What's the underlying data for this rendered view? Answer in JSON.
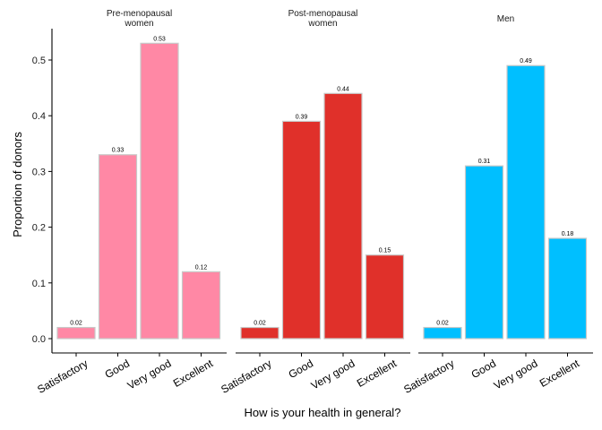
{
  "chart_data": {
    "type": "bar",
    "xlabel": "How is your health in general?",
    "ylabel": "Proportion of donors",
    "ylim": [
      0,
      0.55
    ],
    "yticks": [
      "0.0",
      "0.1",
      "0.2",
      "0.3",
      "0.4",
      "0.5"
    ],
    "categories": [
      "Satisfactory",
      "Good",
      "Very good",
      "Excellent"
    ],
    "grid": false,
    "facets": [
      {
        "title_lines": [
          "Pre-menopausal",
          "women"
        ],
        "color": "#ff88a5",
        "values": [
          0.02,
          0.33,
          0.53,
          0.12
        ],
        "labels": [
          "0.02",
          "0.33",
          "0.53",
          "0.12"
        ]
      },
      {
        "title_lines": [
          "Post-menopausal",
          "women"
        ],
        "color": "#e0302a",
        "values": [
          0.02,
          0.39,
          0.44,
          0.15
        ],
        "labels": [
          "0.02",
          "0.39",
          "0.44",
          "0.15"
        ]
      },
      {
        "title_lines": [
          "Men"
        ],
        "color": "#00bfff",
        "values": [
          0.02,
          0.31,
          0.49,
          0.18
        ],
        "labels": [
          "0.02",
          "0.31",
          "0.49",
          "0.18"
        ]
      }
    ]
  }
}
